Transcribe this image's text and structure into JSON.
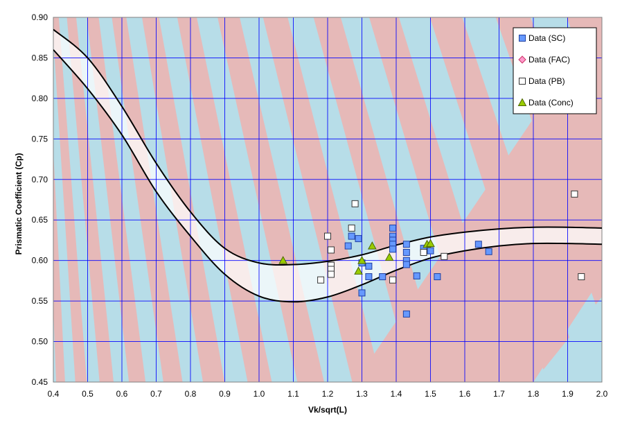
{
  "chart_data": {
    "type": "scatter",
    "title": "",
    "xlabel": "Vk/sqrt(L)",
    "ylabel": "Prismatic Coefficient (Cp)",
    "xlim": [
      0.4,
      2.0
    ],
    "ylim": [
      0.45,
      0.9
    ],
    "grid": true,
    "legend_position": "top-right",
    "x_ticks": [
      "0.4",
      "0.5",
      "0.6",
      "0.7",
      "0.8",
      "0.9",
      "1.0",
      "1.1",
      "1.2",
      "1.3",
      "1.4",
      "1.5",
      "1.6",
      "1.7",
      "1.8",
      "1.9",
      "2.0"
    ],
    "y_ticks": [
      "0.45",
      "0.50",
      "0.55",
      "0.60",
      "0.65",
      "0.70",
      "0.75",
      "0.80",
      "0.85",
      "0.90"
    ],
    "background_bands": {
      "colors": [
        "#b7dde8",
        "#e6b9b8"
      ],
      "description": "alternating diagonal bands"
    },
    "band_curves": {
      "x": [
        0.4,
        0.5,
        0.6,
        0.7,
        0.8,
        0.9,
        1.0,
        1.1,
        1.2,
        1.3,
        1.4,
        1.5,
        1.6,
        1.7,
        1.8,
        1.9,
        2.0
      ],
      "upper": [
        0.885,
        0.85,
        0.79,
        0.72,
        0.66,
        0.615,
        0.597,
        0.595,
        0.599,
        0.607,
        0.619,
        0.629,
        0.635,
        0.639,
        0.641,
        0.641,
        0.64
      ],
      "lower": [
        0.86,
        0.812,
        0.755,
        0.685,
        0.63,
        0.583,
        0.556,
        0.549,
        0.555,
        0.57,
        0.588,
        0.603,
        0.612,
        0.618,
        0.621,
        0.621,
        0.62
      ]
    },
    "series": [
      {
        "name": "Data (SC)",
        "marker": "square",
        "color": "#6699ff",
        "points": [
          [
            1.26,
            0.618
          ],
          [
            1.27,
            0.63
          ],
          [
            1.29,
            0.627
          ],
          [
            1.3,
            0.597
          ],
          [
            1.32,
            0.58
          ],
          [
            1.32,
            0.593
          ],
          [
            1.3,
            0.56
          ],
          [
            1.36,
            0.58
          ],
          [
            1.39,
            0.64
          ],
          [
            1.39,
            0.63
          ],
          [
            1.39,
            0.625
          ],
          [
            1.39,
            0.62
          ],
          [
            1.39,
            0.614
          ],
          [
            1.43,
            0.62
          ],
          [
            1.43,
            0.61
          ],
          [
            1.43,
            0.6
          ],
          [
            1.43,
            0.595
          ],
          [
            1.43,
            0.534
          ],
          [
            1.46,
            0.581
          ],
          [
            1.48,
            0.615
          ],
          [
            1.5,
            0.612
          ],
          [
            1.52,
            0.58
          ],
          [
            1.64,
            0.62
          ],
          [
            1.67,
            0.611
          ]
        ]
      },
      {
        "name": "Data (FAC)",
        "marker": "diamond",
        "color": "#ff99cc",
        "points": []
      },
      {
        "name": "Data (PB)",
        "marker": "square",
        "color": "#ffffff",
        "points": [
          [
            1.2,
            0.63
          ],
          [
            1.21,
            0.613
          ],
          [
            1.21,
            0.594
          ],
          [
            1.21,
            0.589
          ],
          [
            1.21,
            0.583
          ],
          [
            1.18,
            0.576
          ],
          [
            1.27,
            0.64
          ],
          [
            1.28,
            0.67
          ],
          [
            1.39,
            0.576
          ],
          [
            1.48,
            0.61
          ],
          [
            1.54,
            0.605
          ],
          [
            1.92,
            0.682
          ],
          [
            1.94,
            0.58
          ]
        ]
      },
      {
        "name": "Data (Conc)",
        "marker": "triangle",
        "color": "#99cc00",
        "points": [
          [
            1.07,
            0.6
          ],
          [
            1.29,
            0.587
          ],
          [
            1.3,
            0.6
          ],
          [
            1.33,
            0.618
          ],
          [
            1.38,
            0.604
          ],
          [
            1.49,
            0.62
          ],
          [
            1.5,
            0.621
          ]
        ]
      }
    ]
  }
}
